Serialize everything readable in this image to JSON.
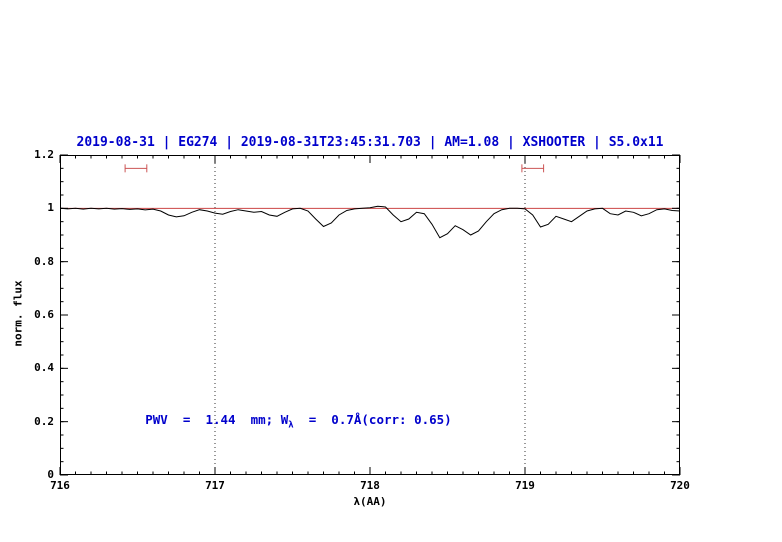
{
  "chart_data": {
    "type": "line",
    "title": "2019-08-31 | EG274 | 2019-08-31T23:45:31.703 | AM=1.08 | XSHOOTER | S5.0x11",
    "xlabel": "λ(AA)",
    "ylabel": "norm. flux",
    "xlim": [
      716,
      720
    ],
    "ylim": [
      0,
      1.2
    ],
    "grid": false,
    "legend": "none",
    "x_ticks": [
      716,
      717,
      718,
      719,
      720
    ],
    "x_tick_labels": [
      "716",
      "717",
      "718",
      "719",
      "720"
    ],
    "y_ticks": [
      0,
      0.2,
      0.4,
      0.6,
      0.8,
      1,
      1.2
    ],
    "y_tick_labels": [
      "0",
      "0.2",
      "0.4",
      "0.6",
      "0.8",
      "1",
      "1.2"
    ],
    "x_minor_step": 0.1,
    "y_minor_step": 0.05,
    "continuum_line": {
      "y": 1.0,
      "color": "#cc4444"
    },
    "dotted_vlines": {
      "x": [
        717,
        719
      ],
      "color": "#333333"
    },
    "range_markers": [
      {
        "x1": 716.42,
        "x2": 716.56,
        "y": 1.15,
        "color": "#cc5555"
      },
      {
        "x1": 718.98,
        "x2": 719.12,
        "y": 1.15,
        "color": "#cc5555"
      }
    ],
    "annotation": {
      "text": "PWV = 1.44 mm; W_λ = 0.7Å(corr: 0.65)",
      "prefix": "PWV  =  1.44  mm; W",
      "sub": "λ",
      "suffix": "  =  0.7Å(corr: 0.65)",
      "color": "#0000cc",
      "x": 716.55,
      "y": 0.2
    },
    "series": [
      {
        "name": "spectrum",
        "color": "#000000",
        "x": [
          716.0,
          716.05,
          716.1,
          716.15,
          716.2,
          716.25,
          716.3,
          716.35,
          716.4,
          716.45,
          716.5,
          716.55,
          716.6,
          716.65,
          716.7,
          716.75,
          716.8,
          716.85,
          716.9,
          716.95,
          717.0,
          717.05,
          717.1,
          717.15,
          717.2,
          717.25,
          717.3,
          717.35,
          717.4,
          717.45,
          717.5,
          717.55,
          717.6,
          717.65,
          717.7,
          717.75,
          717.8,
          717.85,
          717.9,
          717.95,
          718.0,
          718.05,
          718.1,
          718.15,
          718.2,
          718.25,
          718.3,
          718.35,
          718.4,
          718.45,
          718.5,
          718.55,
          718.6,
          718.65,
          718.7,
          718.75,
          718.8,
          718.85,
          718.9,
          718.95,
          719.0,
          719.05,
          719.1,
          719.15,
          719.2,
          719.25,
          719.3,
          719.35,
          719.4,
          719.45,
          719.5,
          719.55,
          719.6,
          719.65,
          719.7,
          719.75,
          719.8,
          719.85,
          719.9,
          719.95,
          720.0
        ],
        "y": [
          1.0,
          0.998,
          1.0,
          0.997,
          1.0,
          0.998,
          1.0,
          0.997,
          0.999,
          0.996,
          0.998,
          0.994,
          0.997,
          0.99,
          0.975,
          0.968,
          0.972,
          0.985,
          0.995,
          0.99,
          0.982,
          0.978,
          0.988,
          0.995,
          0.99,
          0.985,
          0.988,
          0.975,
          0.97,
          0.985,
          0.998,
          1.0,
          0.99,
          0.96,
          0.932,
          0.945,
          0.975,
          0.992,
          0.998,
          1.0,
          1.002,
          1.008,
          1.005,
          0.975,
          0.95,
          0.96,
          0.985,
          0.98,
          0.94,
          0.89,
          0.905,
          0.935,
          0.92,
          0.9,
          0.915,
          0.95,
          0.98,
          0.995,
          1.0,
          1.0,
          0.998,
          0.975,
          0.93,
          0.94,
          0.97,
          0.96,
          0.95,
          0.97,
          0.99,
          0.998,
          1.0,
          0.98,
          0.975,
          0.99,
          0.985,
          0.972,
          0.98,
          0.995,
          0.998,
          0.992,
          0.99
        ]
      }
    ]
  },
  "colors": {
    "title": "#0000cc",
    "annotation": "#0000cc",
    "axis": "#000000",
    "background": "#ffffff"
  }
}
